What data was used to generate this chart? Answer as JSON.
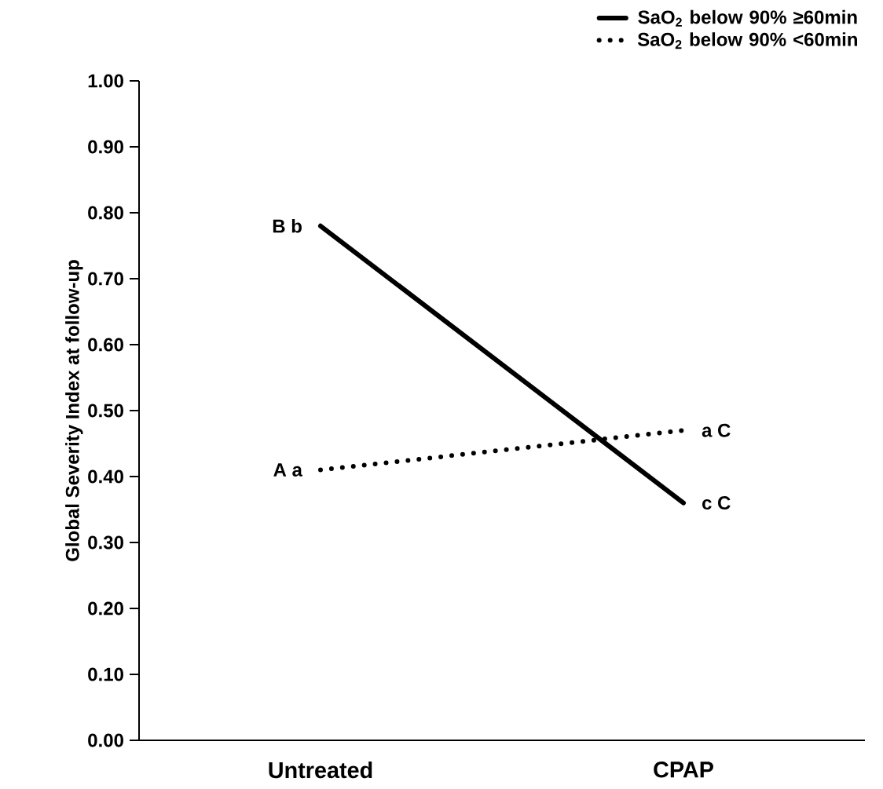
{
  "chart_data": {
    "type": "line",
    "ylabel": "Global Severity Index at follow-up",
    "categories": [
      "Untreated",
      "CPAP"
    ],
    "series": [
      {
        "name": "SaO$_{2}$ below 90% ≥60min",
        "color": "#000000",
        "line_style": "solid",
        "values": [
          0.78,
          0.36
        ]
      },
      {
        "name": "SaO$_{2}$ below 90% <60min",
        "color": "#000000",
        "line_style": "dotted",
        "values": [
          0.41,
          0.47
        ]
      }
    ],
    "ylim": [
      0,
      1
    ],
    "yticks": [
      {
        "value": 0,
        "label": "0.00"
      },
      {
        "value": 0.1,
        "label": "0.10"
      },
      {
        "value": 0.2,
        "label": "0.20"
      },
      {
        "value": 0.3,
        "label": "0.30"
      },
      {
        "value": 0.4,
        "label": "0.40"
      },
      {
        "value": 0.5,
        "label": "0.50"
      },
      {
        "value": 0.6,
        "label": "0.60"
      },
      {
        "value": 0.7,
        "label": "0.70"
      },
      {
        "value": 0.8,
        "label": "0.80"
      },
      {
        "value": 0.9,
        "label": "0.90"
      },
      {
        "value": 1,
        "label": "1.00"
      }
    ],
    "annotations": [
      {
        "text": "B b",
        "x": "Untreated",
        "y": 0.78
      },
      {
        "text": "A a",
        "x": "Untreated",
        "y": 0.41
      },
      {
        "text": "a C",
        "x": "CPAP",
        "y": 0.47
      },
      {
        "text": "c C",
        "x": "CPAP",
        "y": 0.36
      }
    ],
    "grid": false,
    "legend": "top right",
    "marker": "none"
  }
}
